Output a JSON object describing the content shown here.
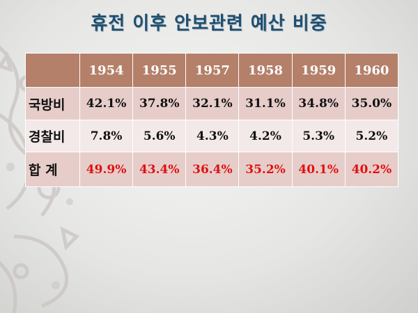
{
  "title": "휴전 이후 안보관련 예산 비중",
  "table": {
    "columns": [
      "",
      "1954",
      "1955",
      "1957",
      "1958",
      "1959",
      "1960"
    ],
    "rows": [
      {
        "label": "국방비",
        "values": [
          "42.1%",
          "37.8%",
          "32.1%",
          "31.1%",
          "34.8%",
          "35.0%"
        ]
      },
      {
        "label": "경찰비",
        "values": [
          "7.8%",
          "5.6%",
          "4.3%",
          "4.2%",
          "5.3%",
          "5.2%"
        ]
      },
      {
        "label": "합 계",
        "values": [
          "49.9%",
          "43.4%",
          "36.4%",
          "35.2%",
          "40.1%",
          "40.2%"
        ]
      }
    ]
  },
  "colors": {
    "title": "#1f4e6e",
    "header_bg": "#b4806a",
    "row_dark": "#e6cdca",
    "row_light": "#f3e9e8",
    "total_text": "#e01010"
  }
}
